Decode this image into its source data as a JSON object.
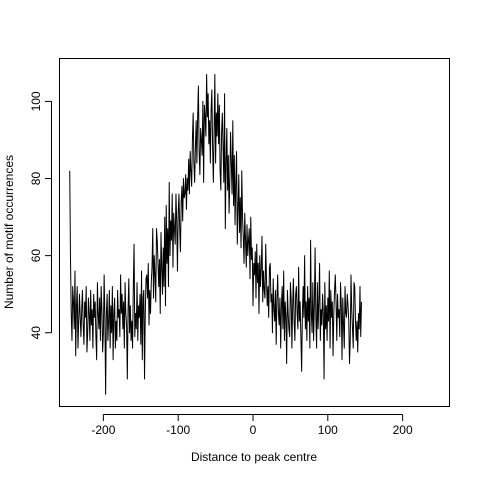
{
  "chart_data": {
    "type": "line",
    "title": "",
    "xlabel": "Distance to peak centre",
    "ylabel": "Number of motif occurrences",
    "xlim": [
      -258,
      262
    ],
    "ylim": [
      21,
      111
    ],
    "x_ticks": [
      -200,
      -100,
      0,
      100,
      200
    ],
    "x_tick_labels": [
      "-200",
      "-100",
      "0",
      "100",
      "200"
    ],
    "y_ticks": [
      40,
      60,
      80,
      100
    ],
    "y_tick_labels": [
      "40",
      "60",
      "80",
      "100"
    ],
    "grid": false,
    "legend": "none",
    "line_color": "#000000",
    "x_start": -245,
    "x_step": 1,
    "series": [
      {
        "values": [
          82,
          60,
          45,
          38,
          52,
          48,
          41,
          56,
          34,
          47,
          52,
          36,
          43,
          50,
          44,
          39,
          46,
          51,
          42,
          37,
          48,
          44,
          52,
          35,
          40,
          49,
          45,
          38,
          51,
          42,
          46,
          36,
          50,
          44,
          48,
          39,
          33,
          53,
          45,
          41,
          49,
          38,
          52,
          46,
          35,
          40,
          55,
          44,
          24,
          45,
          50,
          38,
          43,
          51,
          36,
          47,
          40,
          52,
          33,
          45,
          49,
          36,
          43,
          38,
          51,
          44,
          46,
          39,
          55,
          45,
          50,
          41,
          48,
          36,
          53,
          45,
          42,
          28,
          46,
          54,
          40,
          47,
          38,
          43,
          36,
          52,
          63,
          39,
          45,
          41,
          53,
          38,
          47,
          44,
          50,
          37,
          56,
          33,
          49,
          51,
          28,
          45,
          54,
          55,
          49,
          58,
          42,
          51,
          45,
          53,
          57,
          67,
          49,
          60,
          55,
          48,
          67,
          64,
          58,
          52,
          59,
          45,
          66,
          57,
          50,
          62,
          52,
          70,
          47,
          73,
          58,
          67,
          52,
          79,
          60,
          69,
          64,
          76,
          57,
          71,
          67,
          63,
          76,
          69,
          56,
          71,
          76,
          67,
          61,
          74,
          78,
          69,
          80,
          75,
          76,
          81,
          72,
          80,
          77,
          85,
          76,
          87,
          82,
          78,
          90,
          97,
          84,
          79,
          88,
          95,
          84,
          96,
          104,
          87,
          81,
          93,
          90,
          86,
          100,
          79,
          99,
          96,
          91,
          107,
          96,
          102,
          89,
          95,
          84,
          98,
          103,
          88,
          79,
          92,
          107,
          84,
          97,
          91,
          102,
          89,
          99,
          82,
          77,
          92,
          97,
          88,
          79,
          102,
          67,
          84,
          93,
          77,
          86,
          71,
          79,
          92,
          84,
          76,
          95,
          73,
          86,
          68,
          79,
          87,
          63,
          72,
          81,
          66,
          75,
          62,
          82,
          70,
          65,
          58,
          71,
          64,
          57,
          68,
          60,
          64,
          67,
          54,
          70,
          59,
          62,
          47,
          58,
          55,
          61,
          49,
          63,
          53,
          58,
          45,
          60,
          52,
          57,
          65,
          48,
          56,
          51,
          49,
          63,
          54,
          47,
          52,
          44,
          57,
          58,
          48,
          50,
          40,
          54,
          46,
          43,
          51,
          37,
          49,
          55,
          45,
          42,
          49,
          36,
          47,
          52,
          41,
          56,
          38,
          48,
          44,
          32,
          51,
          45,
          41,
          39,
          53,
          49,
          36,
          47,
          54,
          43,
          38,
          50,
          52,
          45,
          41,
          57,
          43,
          48,
          39,
          30,
          45,
          52,
          44,
          60,
          41,
          48,
          38,
          52,
          43,
          49,
          36,
          64,
          45,
          40,
          53,
          38,
          47,
          62,
          44,
          36,
          53,
          41,
          48,
          58,
          38,
          46,
          42,
          50,
          45,
          28,
          53,
          41,
          47,
          38,
          49,
          43,
          56,
          36,
          51,
          44,
          48,
          34,
          45,
          51,
          55,
          48,
          38,
          50,
          44,
          46,
          39,
          53,
          47,
          33,
          49,
          42,
          36,
          52,
          45,
          44,
          50,
          47,
          43,
          32,
          38,
          55,
          46,
          41,
          36,
          53,
          52,
          43,
          38,
          43,
          35,
          45,
          41,
          52,
          39,
          48
        ]
      }
    ]
  }
}
